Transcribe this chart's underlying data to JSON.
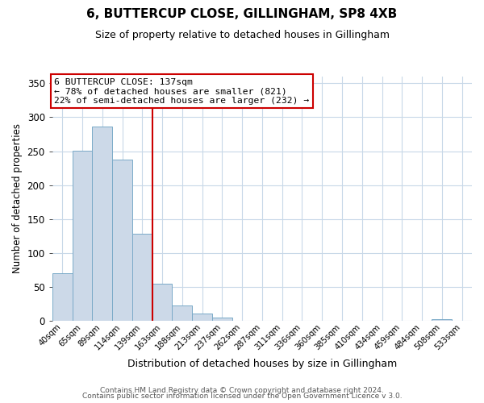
{
  "title": "6, BUTTERCUP CLOSE, GILLINGHAM, SP8 4XB",
  "subtitle": "Size of property relative to detached houses in Gillingham",
  "xlabel": "Distribution of detached houses by size in Gillingham",
  "ylabel": "Number of detached properties",
  "bar_labels": [
    "40sqm",
    "65sqm",
    "89sqm",
    "114sqm",
    "139sqm",
    "163sqm",
    "188sqm",
    "213sqm",
    "237sqm",
    "262sqm",
    "287sqm",
    "311sqm",
    "336sqm",
    "360sqm",
    "385sqm",
    "410sqm",
    "434sqm",
    "459sqm",
    "484sqm",
    "508sqm",
    "533sqm"
  ],
  "bar_values": [
    70,
    251,
    286,
    237,
    128,
    54,
    22,
    11,
    5,
    0,
    0,
    0,
    0,
    0,
    0,
    0,
    0,
    0,
    0,
    2,
    0
  ],
  "bar_color": "#ccd9e8",
  "bar_edge_color": "#7aaac8",
  "vline_x_idx": 4,
  "vline_color": "#cc0000",
  "annotation_title": "6 BUTTERCUP CLOSE: 137sqm",
  "annotation_line1": "← 78% of detached houses are smaller (821)",
  "annotation_line2": "22% of semi-detached houses are larger (232) →",
  "annotation_box_color": "#ffffff",
  "annotation_box_edge": "#cc0000",
  "ylim": [
    0,
    360
  ],
  "yticks": [
    0,
    50,
    100,
    150,
    200,
    250,
    300,
    350
  ],
  "footer1": "Contains HM Land Registry data © Crown copyright and database right 2024.",
  "footer2": "Contains public sector information licensed under the Open Government Licence v 3.0.",
  "bg_color": "#ffffff",
  "grid_color": "#c8d8e8",
  "title_fontsize": 11,
  "subtitle_fontsize": 9
}
